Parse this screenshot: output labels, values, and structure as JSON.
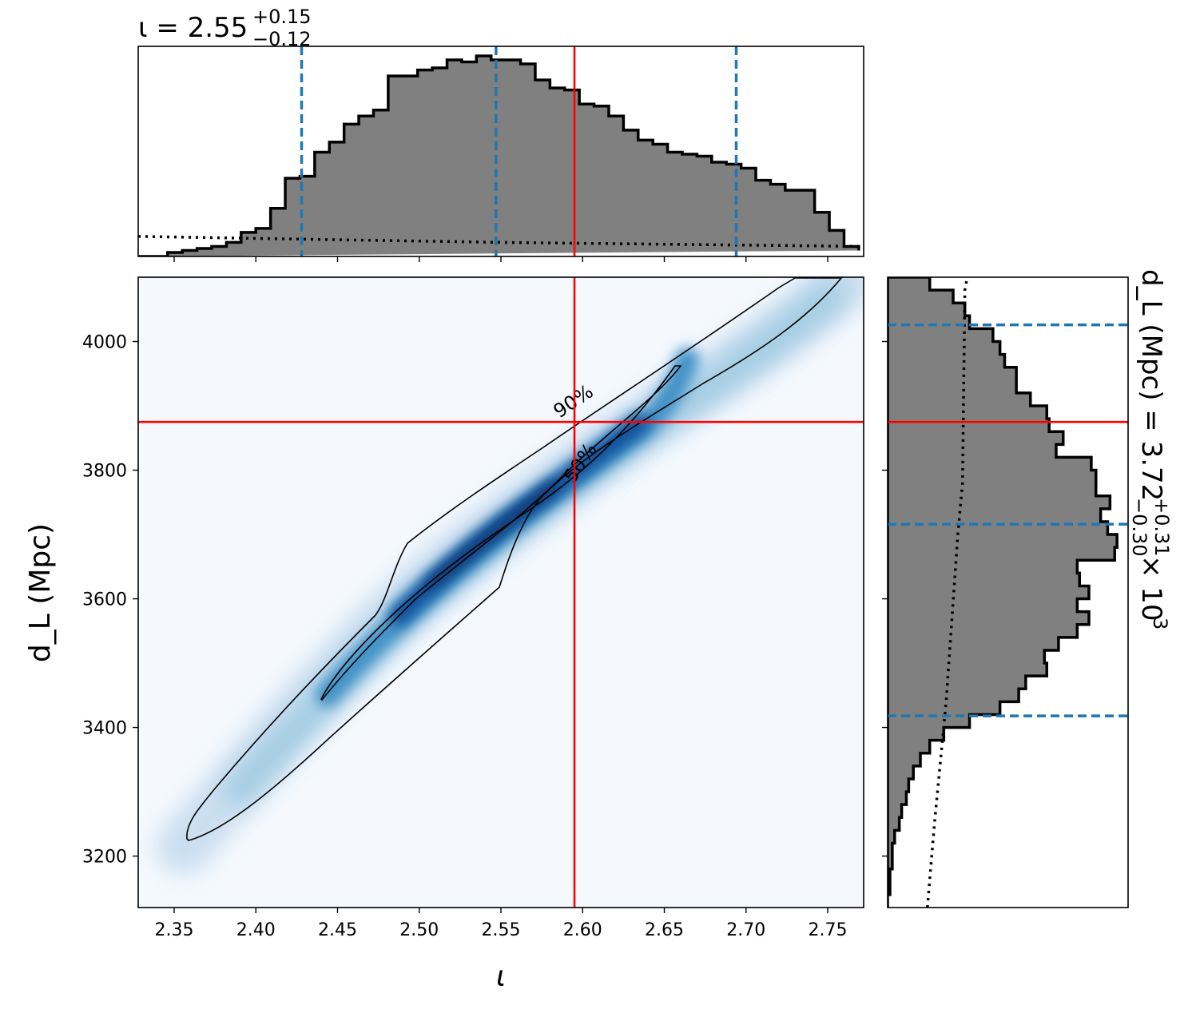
{
  "chart_data": [
    {
      "panel": "top-marginal",
      "type": "histogram",
      "title_prefix": "ι = 2.55",
      "title_plus": "+0.15",
      "title_minus": "−0.12",
      "xlim": [
        2.328,
        2.772
      ],
      "bins": [
        2.328,
        2.337,
        2.346,
        2.355,
        2.364,
        2.373,
        2.382,
        2.391,
        2.4,
        2.409,
        2.418,
        2.427,
        2.436,
        2.445,
        2.454,
        2.463,
        2.472,
        2.481,
        2.49,
        2.499,
        2.508,
        2.517,
        2.526,
        2.535,
        2.544,
        2.553,
        2.562,
        2.571,
        2.58,
        2.589,
        2.598,
        2.607,
        2.616,
        2.625,
        2.634,
        2.643,
        2.652,
        2.661,
        2.67,
        2.679,
        2.688,
        2.697,
        2.706,
        2.715,
        2.724,
        2.733,
        2.742,
        2.751,
        2.76,
        2.769
      ],
      "density": [
        0,
        0,
        0.02,
        0.03,
        0.04,
        0.05,
        0.07,
        0.12,
        0.14,
        0.24,
        0.39,
        0.4,
        0.52,
        0.57,
        0.66,
        0.7,
        0.73,
        0.9,
        0.9,
        0.93,
        0.94,
        0.98,
        0.97,
        1.0,
        0.98,
        0.98,
        0.96,
        0.88,
        0.84,
        0.83,
        0.76,
        0.75,
        0.7,
        0.63,
        0.58,
        0.56,
        0.52,
        0.51,
        0.5,
        0.47,
        0.46,
        0.44,
        0.38,
        0.36,
        0.33,
        0.33,
        0.22,
        0.13,
        0.05,
        0.03
      ],
      "prior_dotted": {
        "x": [
          2.328,
          2.4,
          2.55,
          2.772
        ],
        "y": [
          0.1,
          0.09,
          0.07,
          0.05
        ]
      },
      "quantile_lines": [
        2.428,
        2.547,
        2.694
      ],
      "true_value": 2.595,
      "colors": {
        "fill": "#808080",
        "edge": "#000000",
        "quantile": "#1f77b4",
        "truth": "#ff0000"
      }
    },
    {
      "panel": "joint",
      "type": "heatmap",
      "xlabel": "ι",
      "ylabel": "d_L (Mpc)",
      "xlim": [
        2.328,
        2.772
      ],
      "ylim": [
        3120,
        4100
      ],
      "xticks": [
        "2.35",
        "2.40",
        "2.45",
        "2.50",
        "2.55",
        "2.60",
        "2.65",
        "2.70",
        "2.75"
      ],
      "yticks": [
        "3200",
        "3400",
        "3600",
        "3800",
        "4000"
      ],
      "contour_labels": [
        "90%",
        "50%"
      ],
      "true_value": {
        "iota": 2.595,
        "dL": 3875
      },
      "colormap": "Blues"
    },
    {
      "panel": "right-marginal",
      "type": "histogram",
      "orientation": "horizontal",
      "label_base": "d_L (Mpc) = 3.72",
      "label_plus": "+0.31",
      "label_minus": "−0.30",
      "label_scale": "× 10",
      "label_scale_exp": "3",
      "ylim": [
        3120,
        4100
      ],
      "bins": [
        3120,
        3140,
        3160,
        3180,
        3200,
        3220,
        3240,
        3260,
        3280,
        3300,
        3320,
        3340,
        3360,
        3380,
        3400,
        3420,
        3440,
        3460,
        3480,
        3500,
        3520,
        3540,
        3560,
        3580,
        3600,
        3620,
        3640,
        3660,
        3680,
        3700,
        3720,
        3740,
        3760,
        3780,
        3800,
        3820,
        3840,
        3860,
        3880,
        3900,
        3920,
        3940,
        3960,
        3980,
        4000,
        4020,
        4040,
        4060,
        4080,
        4100
      ],
      "density": [
        0,
        0.01,
        0.01,
        0.02,
        0.02,
        0.03,
        0.05,
        0.06,
        0.08,
        0.09,
        0.11,
        0.14,
        0.18,
        0.24,
        0.35,
        0.48,
        0.56,
        0.59,
        0.68,
        0.67,
        0.73,
        0.81,
        0.86,
        0.81,
        0.86,
        0.82,
        0.81,
        0.97,
        0.98,
        0.94,
        0.91,
        0.95,
        0.89,
        0.89,
        0.87,
        0.72,
        0.75,
        0.69,
        0.68,
        0.61,
        0.55,
        0.55,
        0.5,
        0.48,
        0.45,
        0.35,
        0.33,
        0.28,
        0.18
      ],
      "prior_dotted": {
        "y": [
          3120,
          3250,
          3440,
          3700,
          3780,
          4080,
          4100
        ],
        "x": [
          0.17,
          0.2,
          0.25,
          0.3,
          0.32,
          0.33,
          0.34
        ]
      },
      "quantile_lines": [
        3418,
        3716,
        4026
      ],
      "true_value": 3875,
      "colors": {
        "fill": "#808080",
        "edge": "#000000",
        "quantile": "#1f77b4",
        "truth": "#ff0000"
      }
    }
  ]
}
